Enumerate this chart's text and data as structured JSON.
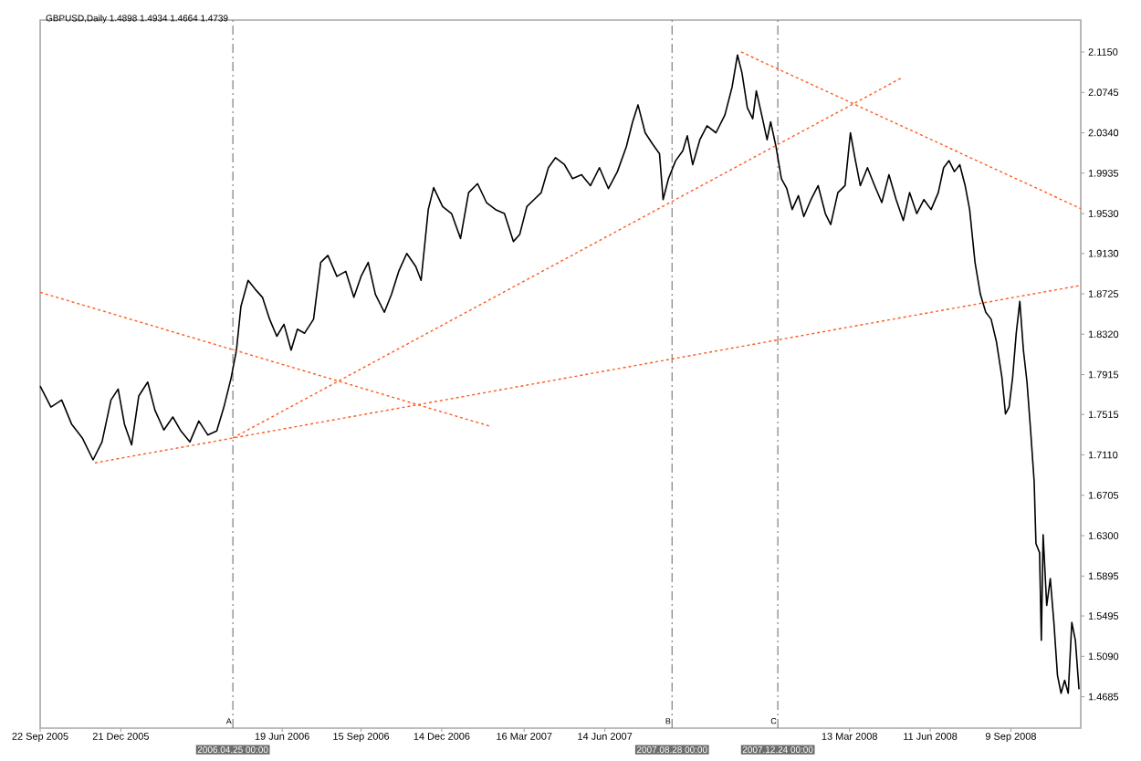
{
  "chart_data": {
    "type": "line",
    "title": "GBPUSD,Daily 1.4898 1.4934 1.4664 1.4739",
    "xlim": [
      "2005-09-22",
      "2008-11-26"
    ],
    "ylim": [
      1.437,
      2.147
    ],
    "xticks": [
      {
        "value": "2005-09-22",
        "label": "22 Sep 2005"
      },
      {
        "value": "2005-12-21",
        "label": "21 Dec 2005"
      },
      {
        "value": "2006-06-19",
        "label": "19 Jun 2006"
      },
      {
        "value": "2006-09-15",
        "label": "15 Sep 2006"
      },
      {
        "value": "2006-12-14",
        "label": "14 Dec 2006"
      },
      {
        "value": "2007-03-16",
        "label": "16 Mar 2007"
      },
      {
        "value": "2007-06-14",
        "label": "14 Jun 2007"
      },
      {
        "value": "2008-03-13",
        "label": "13 Mar 2008"
      },
      {
        "value": "2008-06-11",
        "label": "11 Jun 2008"
      },
      {
        "value": "2008-09-09",
        "label": "9 Sep 2008"
      }
    ],
    "yticks": [
      {
        "value": 2.115,
        "label": "2.1150"
      },
      {
        "value": 2.0745,
        "label": "2.0745"
      },
      {
        "value": 2.034,
        "label": "2.0340"
      },
      {
        "value": 1.9935,
        "label": "1.9935"
      },
      {
        "value": 1.953,
        "label": "1.9530"
      },
      {
        "value": 1.913,
        "label": "1.9130"
      },
      {
        "value": 1.8725,
        "label": "1.8725"
      },
      {
        "value": 1.832,
        "label": "1.8320"
      },
      {
        "value": 1.7915,
        "label": "1.7915"
      },
      {
        "value": 1.7515,
        "label": "1.7515"
      },
      {
        "value": 1.711,
        "label": "1.7110"
      },
      {
        "value": 1.6705,
        "label": "1.6705"
      },
      {
        "value": 1.63,
        "label": "1.6300"
      },
      {
        "value": 1.5895,
        "label": "1.5895"
      },
      {
        "value": 1.5495,
        "label": "1.5495"
      },
      {
        "value": 1.509,
        "label": "1.5090"
      },
      {
        "value": 1.4685,
        "label": "1.4685"
      }
    ],
    "marker": "none",
    "series": [
      {
        "color": "#000000",
        "line_style": "solid",
        "x": [
          "2005-09-22",
          "2005-10-04",
          "2005-10-16",
          "2005-10-27",
          "2005-11-08",
          "2005-11-20",
          "2005-11-30",
          "2005-12-10",
          "2005-12-18",
          "2005-12-25",
          "2006-01-02",
          "2006-01-10",
          "2006-01-20",
          "2006-01-28",
          "2006-02-07",
          "2006-02-17",
          "2006-02-26",
          "2006-03-08",
          "2006-03-18",
          "2006-03-28",
          "2006-04-07",
          "2006-04-15",
          "2006-04-23",
          "2006-04-29",
          "2006-05-04",
          "2006-05-12",
          "2006-05-20",
          "2006-05-28",
          "2006-06-05",
          "2006-06-13",
          "2006-06-21",
          "2006-06-29",
          "2006-07-06",
          "2006-07-14",
          "2006-07-24",
          "2006-08-01",
          "2006-08-09",
          "2006-08-19",
          "2006-08-29",
          "2006-09-07",
          "2006-09-15",
          "2006-09-23",
          "2006-10-01",
          "2006-10-11",
          "2006-10-19",
          "2006-10-27",
          "2006-11-05",
          "2006-11-15",
          "2006-11-21",
          "2006-11-29",
          "2006-12-05",
          "2006-12-15",
          "2006-12-25",
          "2007-01-04",
          "2007-01-13",
          "2007-01-23",
          "2007-02-02",
          "2007-02-12",
          "2007-02-22",
          "2007-03-04",
          "2007-03-11",
          "2007-03-19",
          "2007-03-27",
          "2007-04-04",
          "2007-04-12",
          "2007-04-20",
          "2007-04-30",
          "2007-05-09",
          "2007-05-19",
          "2007-05-29",
          "2007-06-08",
          "2007-06-18",
          "2007-06-28",
          "2007-07-08",
          "2007-07-15",
          "2007-07-21",
          "2007-07-29",
          "2007-08-06",
          "2007-08-14",
          "2007-08-18",
          "2007-08-24",
          "2007-09-01",
          "2007-09-09",
          "2007-09-14",
          "2007-09-20",
          "2007-09-28",
          "2007-10-06",
          "2007-10-16",
          "2007-10-26",
          "2007-11-03",
          "2007-11-09",
          "2007-11-14",
          "2007-11-20",
          "2007-11-26",
          "2007-11-30",
          "2007-12-06",
          "2007-12-12",
          "2007-12-16",
          "2007-12-22",
          "2007-12-28",
          "2008-01-03",
          "2008-01-09",
          "2008-01-16",
          "2008-01-22",
          "2008-01-30",
          "2008-02-07",
          "2008-02-15",
          "2008-02-21",
          "2008-02-29",
          "2008-03-08",
          "2008-03-14",
          "2008-03-19",
          "2008-03-25",
          "2008-04-02",
          "2008-04-10",
          "2008-04-18",
          "2008-04-26",
          "2008-05-04",
          "2008-05-12",
          "2008-05-19",
          "2008-05-27",
          "2008-06-04",
          "2008-06-12",
          "2008-06-20",
          "2008-06-26",
          "2008-07-02",
          "2008-07-08",
          "2008-07-14",
          "2008-07-20",
          "2008-07-25",
          "2008-07-31",
          "2008-08-06",
          "2008-08-12",
          "2008-08-18",
          "2008-08-24",
          "2008-08-30",
          "2008-09-03",
          "2008-09-07",
          "2008-09-11",
          "2008-09-15",
          "2008-09-19",
          "2008-09-23",
          "2008-09-27",
          "2008-10-01",
          "2008-10-05",
          "2008-10-07",
          "2008-10-11",
          "2008-10-13",
          "2008-10-15",
          "2008-10-19",
          "2008-10-23",
          "2008-10-27",
          "2008-10-31",
          "2008-11-04",
          "2008-11-08",
          "2008-11-12",
          "2008-11-16",
          "2008-11-20",
          "2008-11-24"
        ],
        "values": [
          1.78,
          1.759,
          1.766,
          1.742,
          1.728,
          1.706,
          1.724,
          1.766,
          1.777,
          1.742,
          1.721,
          1.77,
          1.784,
          1.756,
          1.736,
          1.749,
          1.735,
          1.724,
          1.745,
          1.731,
          1.735,
          1.759,
          1.788,
          1.816,
          1.86,
          1.886,
          1.877,
          1.869,
          1.847,
          1.83,
          1.842,
          1.816,
          1.837,
          1.833,
          1.847,
          1.904,
          1.911,
          1.89,
          1.895,
          1.869,
          1.89,
          1.904,
          1.872,
          1.854,
          1.872,
          1.895,
          1.913,
          1.9,
          1.886,
          1.957,
          1.979,
          1.96,
          1.953,
          1.928,
          1.974,
          1.983,
          1.964,
          1.957,
          1.953,
          1.925,
          1.932,
          1.96,
          1.967,
          1.974,
          1.999,
          2.009,
          2.002,
          1.988,
          1.992,
          1.981,
          1.999,
          1.978,
          1.995,
          2.02,
          2.045,
          2.062,
          2.034,
          2.023,
          2.013,
          1.967,
          1.988,
          2.006,
          2.016,
          2.031,
          2.002,
          2.027,
          2.041,
          2.034,
          2.052,
          2.08,
          2.112,
          2.094,
          2.059,
          2.048,
          2.076,
          2.052,
          2.027,
          2.045,
          2.02,
          1.988,
          1.978,
          1.957,
          1.971,
          1.95,
          1.967,
          1.981,
          1.953,
          1.942,
          1.974,
          1.981,
          2.034,
          2.009,
          1.981,
          1.999,
          1.981,
          1.964,
          1.992,
          1.967,
          1.946,
          1.974,
          1.953,
          1.967,
          1.957,
          1.974,
          1.999,
          2.006,
          1.995,
          2.002,
          1.981,
          1.957,
          1.904,
          1.872,
          1.854,
          1.847,
          1.824,
          1.789,
          1.752,
          1.759,
          1.789,
          1.833,
          1.865,
          1.816,
          1.784,
          1.736,
          1.684,
          1.622,
          1.613,
          1.525,
          1.631,
          1.56,
          1.587,
          1.543,
          1.49,
          1.472,
          1.485,
          1.472,
          1.543,
          1.525,
          1.476
        ]
      },
      {
        "color": "#ff5a1e",
        "line_style": "dotted",
        "x": [
          "2005-09-22",
          "2007-02-05"
        ],
        "values": [
          1.874,
          1.74
        ]
      },
      {
        "color": "#ff5a1e",
        "line_style": "dotted",
        "x": [
          "2005-11-22",
          "2008-11-26"
        ],
        "values": [
          1.703,
          1.881
        ]
      },
      {
        "color": "#ff5a1e",
        "line_style": "dotted",
        "x": [
          "2006-04-25",
          "2008-05-10"
        ],
        "values": [
          1.728,
          2.089
        ]
      },
      {
        "color": "#ff5a1e",
        "line_style": "dotted",
        "x": [
          "2007-11-13",
          "2008-11-26"
        ],
        "values": [
          2.115,
          1.958
        ]
      }
    ],
    "ref_lines": [
      {
        "axis": "x",
        "value": "2006-04-25",
        "label": "2006.04.25 00:00",
        "color": "#808080",
        "line_style": "dashed"
      },
      {
        "axis": "x",
        "value": "2007-08-28",
        "label": "2007.08.28 00:00",
        "color": "#808080",
        "line_style": "dashed"
      },
      {
        "axis": "x",
        "value": "2007-12-24",
        "label": "2007.12.24 00:00",
        "color": "#808080",
        "line_style": "dashed"
      }
    ],
    "annotations": [
      {
        "text": "A",
        "x": "2006-04-25",
        "y": 1.44
      },
      {
        "text": "B",
        "x": "2007-08-28",
        "y": 1.44
      },
      {
        "text": "C",
        "x": "2007-12-24",
        "y": 1.44
      }
    ]
  }
}
